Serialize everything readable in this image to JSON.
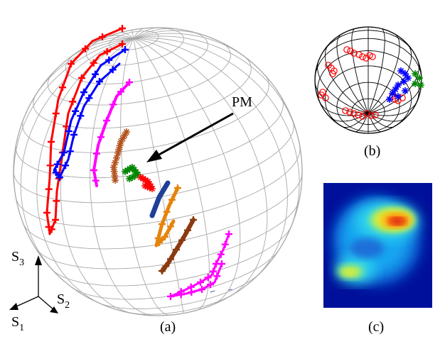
{
  "panels": {
    "a": {
      "caption": "(a)",
      "annotation": "PM"
    },
    "b": {
      "caption": "(b)"
    },
    "c": {
      "caption": "(c)"
    }
  },
  "axes": {
    "s1": {
      "base": "S",
      "sub": "1"
    },
    "s2": {
      "base": "S",
      "sub": "2"
    },
    "s3": {
      "base": "S",
      "sub": "3"
    }
  },
  "colors": {
    "red": "#ff0000",
    "blue": "#0000ff",
    "magenta": "#ff00ff",
    "green": "#008800",
    "brown": "#b3541e",
    "orange": "#e6840a",
    "darkbrown": "#8b3a0f",
    "navy": "#1f3f99",
    "grid": "#a8a8a8"
  }
}
